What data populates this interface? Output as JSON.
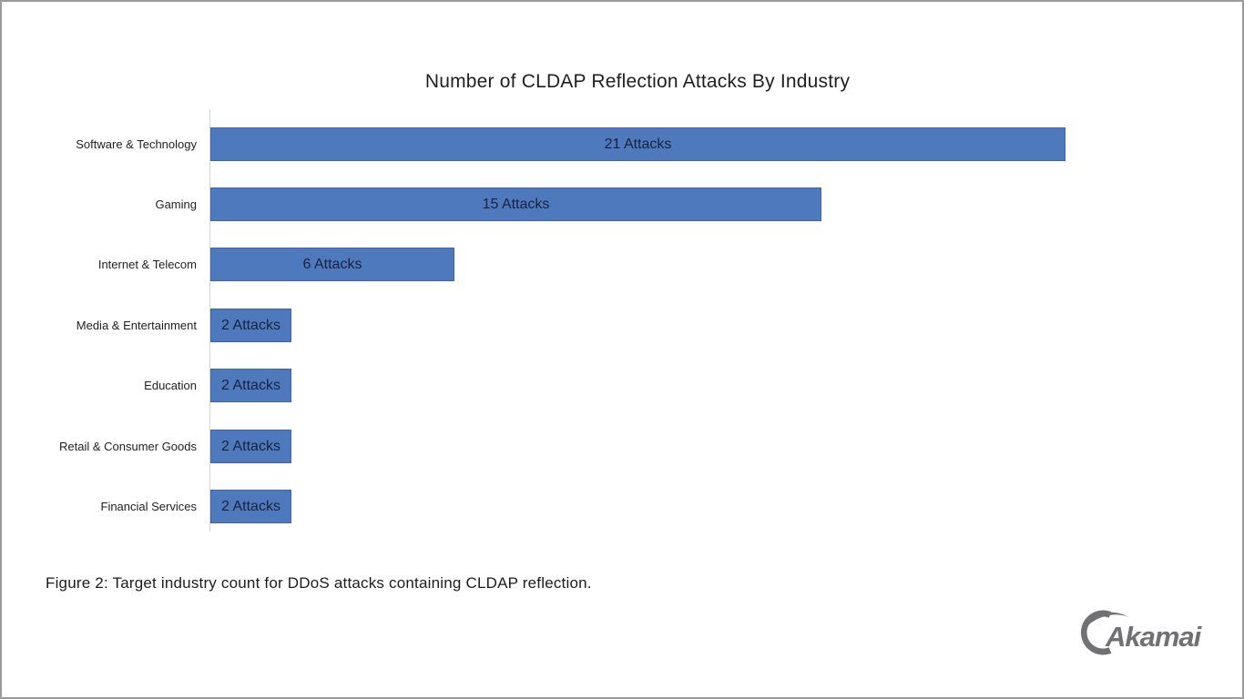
{
  "chart_data": {
    "type": "bar",
    "orientation": "horizontal",
    "title": "Number of CLDAP Reflection Attacks By Industry",
    "categories": [
      "Software & Technology",
      "Gaming",
      "Internet & Telecom",
      "Media & Entertainment",
      "Education",
      "Retail & Consumer Goods",
      "Financial Services"
    ],
    "values": [
      21,
      15,
      6,
      2,
      2,
      2,
      2
    ],
    "bar_labels": [
      "21 Attacks",
      "15 Attacks",
      "6 Attacks",
      "2 Attacks",
      "2 Attacks",
      "2 Attacks",
      "2 Attacks"
    ],
    "xlabel": "",
    "ylabel": "",
    "xlim": [
      0,
      21
    ],
    "grid": false,
    "legend": "none",
    "bar_color": "#4E79BD",
    "bar_label_color": "#17233E",
    "axis_line_color": "#D6D6D6"
  },
  "caption": "Figure 2: Target industry count for DDoS attacks containing CLDAP reflection.",
  "logo": {
    "text": "Akamai",
    "color": "#717174"
  }
}
